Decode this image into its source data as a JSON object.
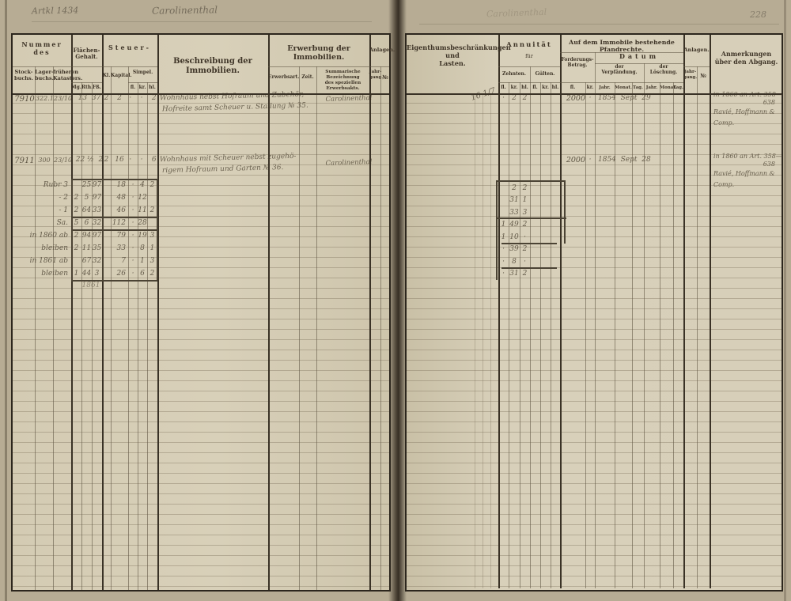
{
  "scan": {
    "article_label": "Artkl 1434",
    "place_name": "Carolinenthal",
    "bleedthrough_note": "Carolinenthal",
    "page_number": "228"
  },
  "left_page": {
    "header": {
      "nummer": "Nummer\ndes",
      "stockbuchs": "Stock-\nbuchs.",
      "lagerbuchs": "Lager-\nbuchs.",
      "katasters": "früheren\nKatasters.",
      "flaechen": "Flächen-\nGehalt.",
      "units_flaechen": [
        "Mg.",
        "Rth.",
        "Fß."
      ],
      "steuer": "Steuer-",
      "kl": "Kl.",
      "kapital": "Kapital.",
      "simpel": "Simpel.",
      "beschreibung": "Beschreibung der Immobilien.",
      "erwerbung": "Erwerbung der Immobilien.",
      "erwerbsart": "Erwerbsart.",
      "zeit": "Zeit.",
      "summarische": "Summarische Bezeichnung\ndes speziellen Erwerbsakts.",
      "anlagen": "Anlagen.",
      "jahrgang": "Jahr-\ngang.",
      "nummer_sign": "№"
    },
    "money_units": [
      "fl.",
      "kr.",
      "hl."
    ],
    "rows": [
      {
        "stockbuch": "7910",
        "lagerbuch": "322.1",
        "kataster": "23/10",
        "flaeche": "13  37",
        "kl": "2",
        "kapital": "2",
        "simpel": "·    ·    2",
        "beschreibung_1": "Wohnhaus nebst Hofraum und Zubehör,",
        "beschreibung_2": "Hofreite samt Scheuer u. Stallung № 35.",
        "erwerbsakt": "Carolinenthal"
      },
      {
        "stockbuch": "7911",
        "lagerbuch": "300",
        "kataster": "23/10",
        "flaeche": "22 ½  2",
        "kl": "2",
        "kapital": "16",
        "simpel": "·    ·    6",
        "beschreibung_1": "Wohnhaus mit Scheuer nebst zugehö-",
        "beschreibung_2": "rigem Hofraum und Garten № 36.",
        "erwerbsakt": "Carolinenthal"
      }
    ],
    "subtable": {
      "rows": [
        {
          "label": "Rubr 3",
          "mg": "",
          "rth": "25",
          "fs": "97",
          "kap": "18",
          "s1": "·",
          "s2": "4",
          "s3": "2"
        },
        {
          "label": "-  2",
          "mg": "2",
          "rth": "5",
          "fs": "97",
          "kap": "48",
          "s1": "·",
          "s2": "12",
          "s3": ""
        },
        {
          "label": "-  1",
          "mg": "2",
          "rth": "64",
          "fs": "33",
          "kap": "46",
          "s1": "·",
          "s2": "11",
          "s3": "2"
        },
        {
          "label": "Sa.",
          "mg": "5",
          "rth": "6",
          "fs": "32",
          "kap": "112",
          "s1": "·",
          "s2": "28",
          "s3": ""
        },
        {
          "label": "in 1860 ab",
          "mg": "2",
          "rth": "94",
          "fs": "97",
          "kap": "79",
          "s1": "·",
          "s2": "19",
          "s3": "3"
        },
        {
          "label": "bleiben",
          "mg": "2",
          "rth": "11",
          "fs": "35",
          "kap": "33",
          "s1": "·",
          "s2": "8",
          "s3": "1"
        },
        {
          "label": "in 1861 ab",
          "mg": "",
          "rth": "67",
          "fs": "32",
          "kap": "7",
          "s1": "·",
          "s2": "1",
          "s3": "3"
        },
        {
          "label": "bleiben",
          "mg": "1",
          "rth": "44",
          "fs": "3",
          "kap": "26",
          "s1": "·",
          "s2": "6",
          "s3": "2"
        }
      ],
      "footer_note": "1861"
    }
  },
  "right_page": {
    "header": {
      "lasten": "Eigenthumsbeschränkungen\nund\nLasten.",
      "annuitaet": "Annuität",
      "fuer": "für",
      "zehnten": "Zehnten.",
      "guelten": "Gülten.",
      "pfandrechte": "Auf dem Immobile bestehende Pfandrechte.",
      "forderung": "Forderungs-\nBetrag.",
      "datum": "Datum",
      "verpfaendung": "der\nVerpfändung.",
      "loeschung": "der\nLöschung.",
      "date_units": [
        "Jahr.",
        "Monat.",
        "Tag."
      ],
      "betrag_units": [
        "fl.",
        "kr."
      ],
      "anlagen": "Anlagen.",
      "jahrgang": "Jahr-\ngang.",
      "nummer_sign": "№",
      "anmerkungen": "Anmerkungen\nüber den Abgang."
    },
    "rows": [
      {
        "lasten_note": "16 1/7",
        "a_fl": "·",
        "a_kr": "2",
        "a_hl": "2",
        "betrag_fl": "2000",
        "betrag_kr": "·",
        "verpfaendung": "1854  Sept  29",
        "anm_1": "in 1860 an Art. 358—",
        "anm_2": "638",
        "anm_3": "Ravié, Hoffmann &",
        "anm_4": "Comp."
      },
      {
        "betrag_fl": "2000",
        "betrag_kr": "·",
        "verpfaendung": "1854  Sept  28",
        "anm_1": "in 1860 an Art. 358—",
        "anm_2": "638",
        "anm_3": "Ravié, Hoffmann &",
        "anm_4": "Comp."
      }
    ],
    "annuity_rows": [
      {
        "fl": "",
        "kr": "2",
        "hl": "2"
      },
      {
        "fl": "",
        "kr": "31",
        "hl": "1"
      },
      {
        "fl": "",
        "kr": "33",
        "hl": "3"
      },
      {
        "fl": "1",
        "kr": "49",
        "hl": "2"
      },
      {
        "fl": "1",
        "kr": "10",
        "hl": "·"
      },
      {
        "fl": "·",
        "kr": "39",
        "hl": "2"
      },
      {
        "fl": "·",
        "kr": "8",
        "hl": "·"
      },
      {
        "fl": "·",
        "kr": "31",
        "hl": "2"
      }
    ]
  }
}
